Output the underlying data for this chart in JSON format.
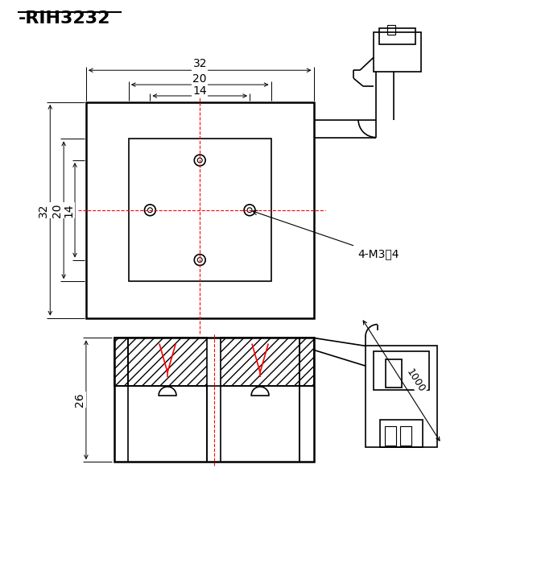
{
  "title": "-RIH3232",
  "bg_color": "#ffffff",
  "line_color": "#000000",
  "red_color": "#ff0000",
  "dim_32": "32",
  "dim_20": "20",
  "dim_14": "14",
  "dim_26": "26",
  "dim_1000": "1000",
  "label_4m3": "4-M3深4"
}
